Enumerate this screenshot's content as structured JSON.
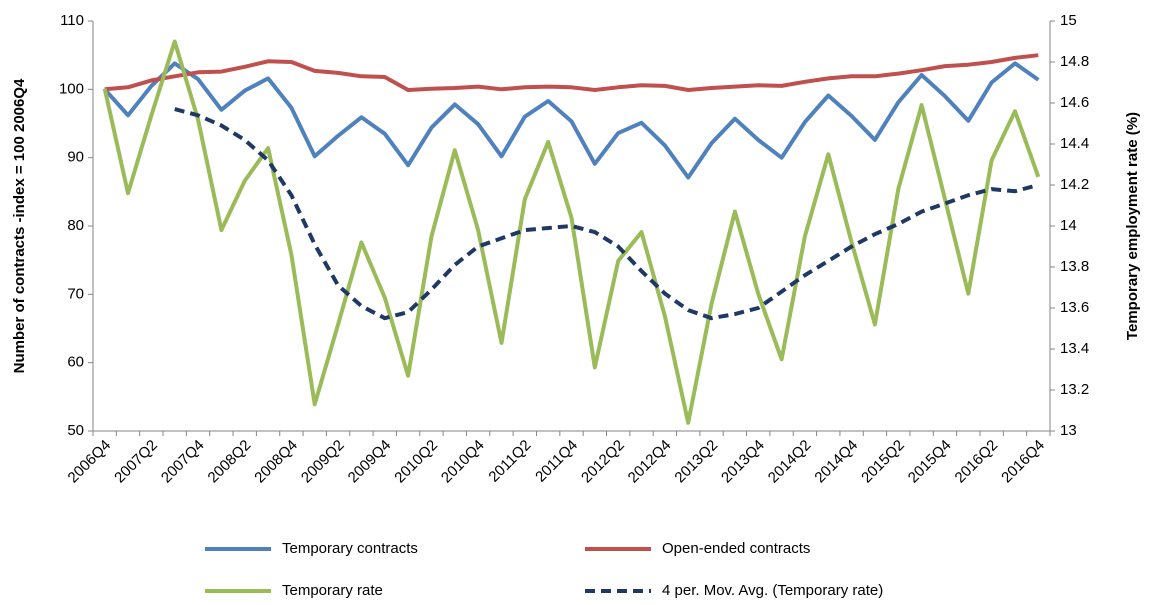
{
  "chart_data": {
    "type": "line",
    "categories": [
      "2006Q4",
      null,
      "2007Q2",
      null,
      "2007Q4",
      null,
      "2008Q2",
      null,
      "2008Q4",
      null,
      "2009Q2",
      null,
      "2009Q4",
      null,
      "2010Q2",
      null,
      "2010Q4",
      null,
      "2011Q2",
      null,
      "2011Q4",
      null,
      "2012Q2",
      null,
      "2012Q4",
      null,
      "2013Q2",
      null,
      "2013Q4",
      null,
      "2014Q2",
      null,
      "2014Q4",
      null,
      "2015Q2",
      null,
      "2015Q4",
      null,
      "2016Q2",
      null,
      "2016Q4"
    ],
    "ylabel": "Number of contracts -index = 100 2006Q4",
    "y2label": "Temporary employment rate (%)",
    "ylim": [
      50,
      110
    ],
    "yticks": [
      50,
      60,
      70,
      80,
      90,
      100,
      110
    ],
    "y2lim": [
      13,
      15
    ],
    "y2ticks": [
      13,
      13.2,
      13.4,
      13.6,
      13.8,
      14,
      14.2,
      14.4,
      14.6,
      14.8,
      15
    ],
    "series": [
      {
        "name": "Temporary contracts",
        "color": "#4f81bd",
        "values": [
          100,
          96.2,
          100.5,
          103.8,
          101.5,
          97,
          99.8,
          101.6,
          97.3,
          90.2,
          93.2,
          95.9,
          93.5,
          88.9,
          94.4,
          97.8,
          94.9,
          90.2,
          96,
          98.3,
          95.3,
          89.1,
          93.6,
          95.1,
          91.8,
          87.1,
          92.1,
          95.7,
          92.6,
          90,
          95.2,
          99.1,
          96.1,
          92.6,
          98.1,
          102.1,
          99,
          95.4,
          101,
          103.8,
          101.4
        ]
      },
      {
        "name": "Open-ended contracts",
        "color": "#c0504d",
        "values": [
          100,
          100.3,
          101.3,
          101.9,
          102.5,
          102.6,
          103.3,
          104.1,
          104,
          102.7,
          102.4,
          101.9,
          101.8,
          99.9,
          100.1,
          100.2,
          100.4,
          100,
          100.3,
          100.4,
          100.3,
          99.9,
          100.3,
          100.6,
          100.5,
          99.9,
          100.2,
          100.4,
          100.6,
          100.5,
          101.1,
          101.6,
          101.9,
          101.9,
          102.3,
          102.8,
          103.4,
          103.6,
          104,
          104.6,
          105
        ]
      },
      {
        "name": "Temporary rate",
        "color": "#9bbb59",
        "axis": "y2",
        "values": [
          14.67,
          14.16,
          14.54,
          14.9,
          14.52,
          13.98,
          14.22,
          14.38,
          13.86,
          13.13,
          13.52,
          13.92,
          13.65,
          13.27,
          13.95,
          14.37,
          13.98,
          13.43,
          14.13,
          14.41,
          14.04,
          13.31,
          13.83,
          13.97,
          13.56,
          13.04,
          13.62,
          14.07,
          13.67,
          13.35,
          13.95,
          14.35,
          13.92,
          13.52,
          14.18,
          14.59,
          14.13,
          13.67,
          14.32,
          14.56,
          14.24
        ]
      },
      {
        "name": "4 per. Mov. Avg. (Temporary rate)",
        "color": "#1f3864",
        "axis": "y2",
        "dashed": true,
        "values": [
          null,
          null,
          null,
          14.57,
          14.54,
          14.49,
          14.42,
          14.32,
          14.15,
          13.91,
          13.71,
          13.61,
          13.55,
          13.58,
          13.69,
          13.81,
          13.9,
          13.94,
          13.98,
          13.99,
          14,
          13.97,
          13.9,
          13.78,
          13.67,
          13.59,
          13.55,
          13.57,
          13.6,
          13.68,
          13.76,
          13.83,
          13.9,
          13.96,
          14.01,
          14.07,
          14.11,
          14.15,
          14.18,
          14.17,
          14.2
        ]
      }
    ]
  }
}
